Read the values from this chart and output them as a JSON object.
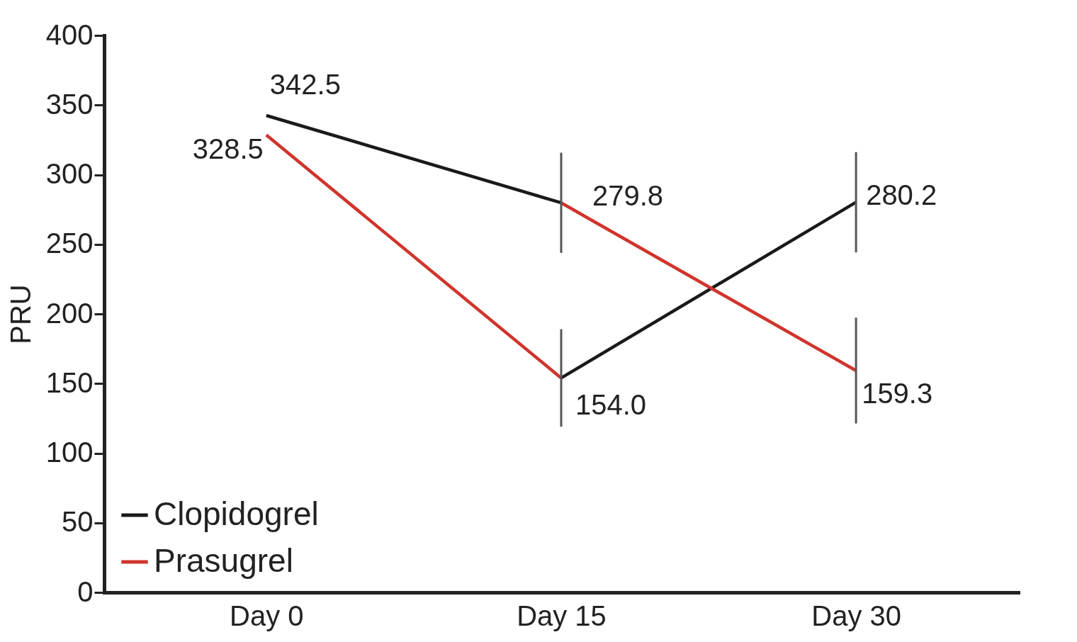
{
  "chart_data": {
    "type": "line",
    "ylabel": "PRU",
    "categories": [
      "Day 0",
      "Day 15",
      "Day 30"
    ],
    "ylim": [
      0,
      400
    ],
    "yticks": [
      0,
      50,
      100,
      150,
      200,
      250,
      300,
      350,
      400
    ],
    "grid": false,
    "legend": "bottom left",
    "marker": "none",
    "line_style": "solid",
    "series": [
      {
        "name": "Clopidogrel",
        "color": "#1a1a1a",
        "values": [
          342.5,
          279.8,
          null
        ],
        "errors": [
          null,
          36,
          null
        ],
        "value_labels": [
          "342.5",
          "279.8",
          null
        ]
      },
      {
        "name": "Prasugrel",
        "color": "#d0342c",
        "values": [
          328.5,
          154.0,
          null
        ],
        "errors": [
          null,
          35,
          null
        ],
        "value_labels": [
          "328.5",
          "154.0",
          null
        ]
      },
      {
        "color": "#1a1a1a",
        "values": [
          null,
          154.0,
          280.2
        ],
        "errors": [
          null,
          null,
          36
        ],
        "value_labels": [
          null,
          null,
          "280.2"
        ]
      },
      {
        "color": "#d0342c",
        "values": [
          null,
          279.8,
          159.3
        ],
        "errors": [
          null,
          null,
          38
        ],
        "value_labels": [
          null,
          null,
          "159.3"
        ]
      }
    ]
  }
}
